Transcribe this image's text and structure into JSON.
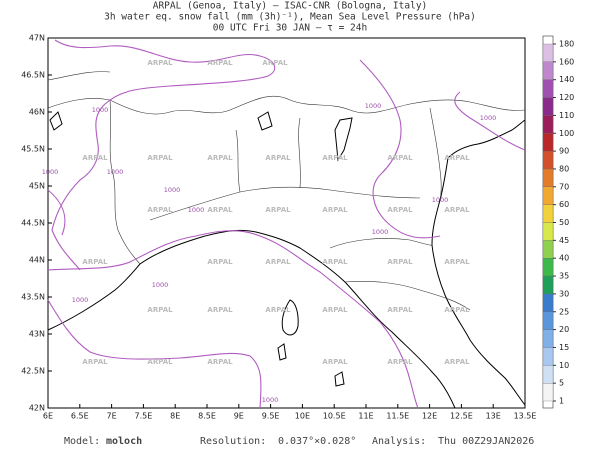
{
  "header": {
    "lines": [
      "ARPAL (Genoa, Italy)  –  ISAC-CNR (Bologna, Italy)",
      "3h water eq. snow fall (mm (3h)⁻¹), Mean Sea Level Pressure (hPa)",
      "00 UTC Fri 30 JAN  –  τ = 24h"
    ]
  },
  "map": {
    "lon_lim": [
      6,
      13.5
    ],
    "lat_lim": [
      42,
      47
    ],
    "lon_ticks": [
      {
        "value": 6,
        "label": "6E"
      },
      {
        "value": 6.5,
        "label": "6.5E"
      },
      {
        "value": 7,
        "label": "7E"
      },
      {
        "value": 7.5,
        "label": "7.5E"
      },
      {
        "value": 8,
        "label": "8E"
      },
      {
        "value": 8.5,
        "label": "8.5E"
      },
      {
        "value": 9,
        "label": "9E"
      },
      {
        "value": 9.5,
        "label": "9.5E"
      },
      {
        "value": 10,
        "label": "10E"
      },
      {
        "value": 10.5,
        "label": "10.5E"
      },
      {
        "value": 11,
        "label": "11E"
      },
      {
        "value": 11.5,
        "label": "11.5E"
      },
      {
        "value": 12,
        "label": "12E"
      },
      {
        "value": 12.5,
        "label": "12.5E"
      },
      {
        "value": 13,
        "label": "13E"
      },
      {
        "value": 13.5,
        "label": "13.5E"
      }
    ],
    "lat_ticks": [
      {
        "value": 42,
        "label": "42N"
      },
      {
        "value": 42.5,
        "label": "42.5N"
      },
      {
        "value": 43,
        "label": "43N"
      },
      {
        "value": 43.5,
        "label": "43.5N"
      },
      {
        "value": 44,
        "label": "44N"
      },
      {
        "value": 44.5,
        "label": "44.5N"
      },
      {
        "value": 45,
        "label": "45N"
      },
      {
        "value": 45.5,
        "label": "45.5N"
      },
      {
        "value": 46,
        "label": "46N"
      },
      {
        "value": 46.5,
        "label": "46.5N"
      },
      {
        "value": 47,
        "label": "47N"
      }
    ],
    "isobar_label": "1000",
    "watermark": "ARPAL"
  },
  "colorbar": {
    "levels": [
      1,
      5,
      10,
      15,
      20,
      25,
      30,
      35,
      40,
      45,
      50,
      60,
      70,
      80,
      90,
      100,
      110,
      120,
      140,
      160,
      180
    ],
    "colors": [
      "#f4f4f4",
      "#cfe0f5",
      "#a8c8f0",
      "#7fb0e8",
      "#5a96dc",
      "#3a7ccc",
      "#1f9f5a",
      "#3db84a",
      "#8fd14f",
      "#d8e84a",
      "#f2d23a",
      "#f0a830",
      "#e27c2a",
      "#d2502a",
      "#b8282a",
      "#9a1e5a",
      "#8a2a8a",
      "#a050b0",
      "#c088cc",
      "#dcc0e4"
    ]
  },
  "footer": {
    "model_label": "Model:",
    "model": "moloch",
    "resolution_label": "Resolution:",
    "resolution": "0.037°×0.028°",
    "analysis_label": "Analysis:",
    "analysis": "Thu 00Z29JAN2026"
  }
}
